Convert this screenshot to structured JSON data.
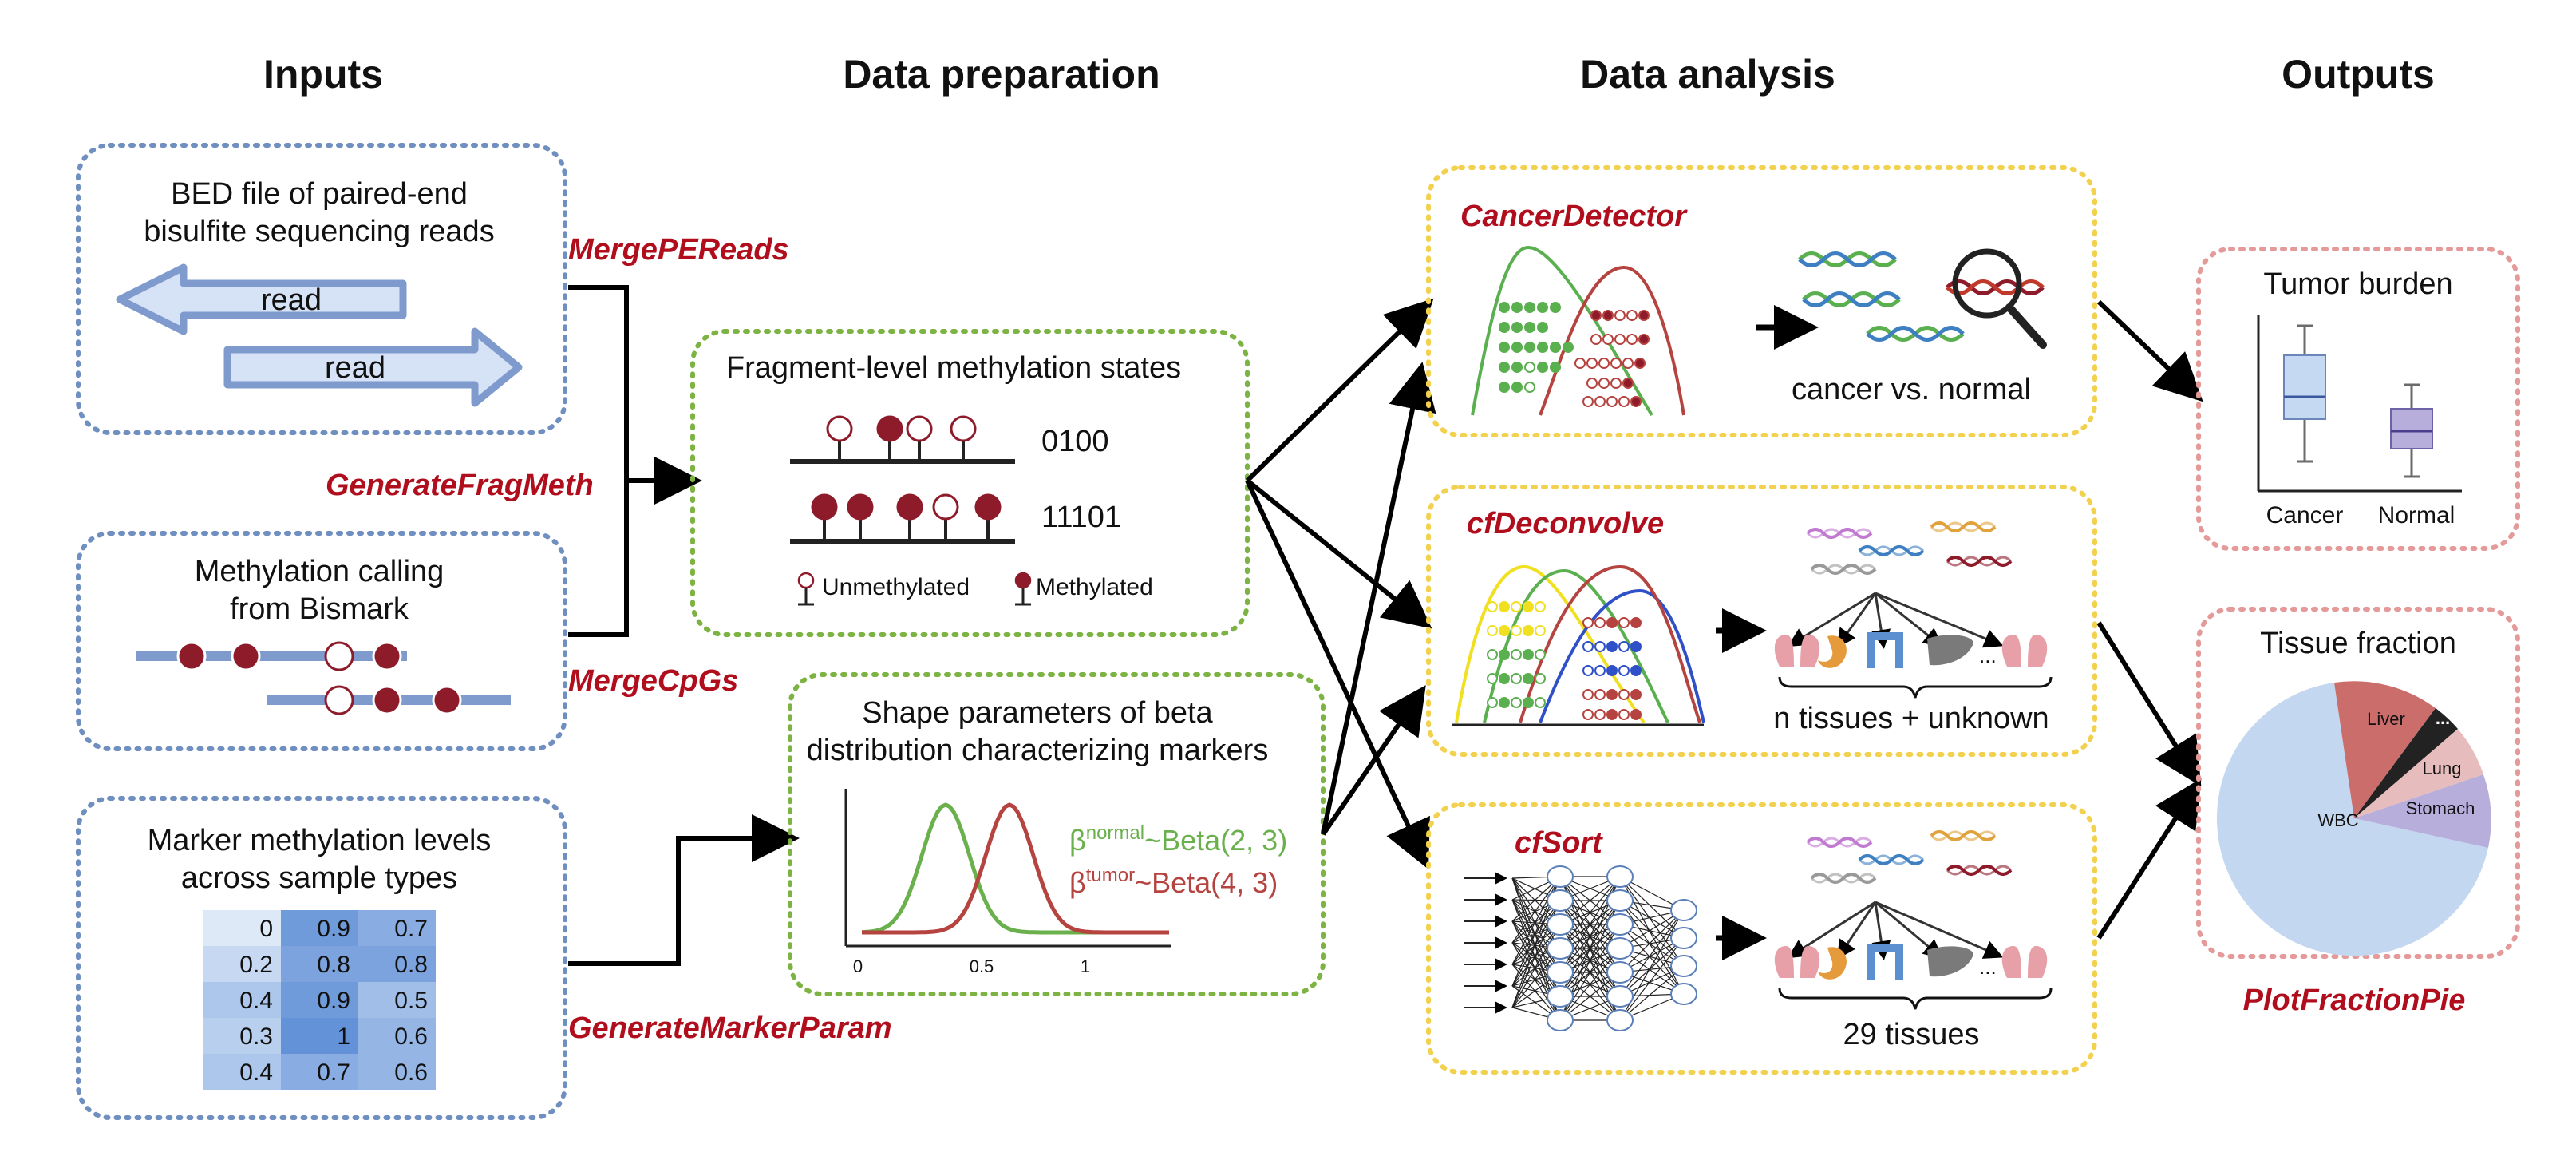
{
  "headers": {
    "inputs": "Inputs",
    "data_preparation": "Data preparation",
    "data_analysis": "Data analysis",
    "outputs": "Outputs"
  },
  "inputs": {
    "bed_file": {
      "line1": "BED file of paired-end",
      "line2": "bisulfite sequencing reads",
      "read_label": "read"
    },
    "bismark": {
      "line1": "Methylation calling",
      "line2": "from Bismark"
    },
    "markers": {
      "line1": "Marker methylation levels",
      "line2": "across sample types",
      "table": [
        [
          "0",
          "0.9",
          "0.7"
        ],
        [
          "0.2",
          "0.8",
          "0.8"
        ],
        [
          "0.4",
          "0.9",
          "0.5"
        ],
        [
          "0.3",
          "1",
          "0.6"
        ],
        [
          "0.4",
          "0.7",
          "0.6"
        ]
      ]
    }
  },
  "functions": {
    "merge_pe_reads": "MergePEReads",
    "generate_frag_meth": "GenerateFragMeth",
    "merge_cpgs": "MergeCpGs",
    "generate_marker_param": "GenerateMarkerParam",
    "cancer_detector": "CancerDetector",
    "cf_deconvolve": "cfDeconvolve",
    "cf_sort": "cfSort",
    "plot_fraction_pie": "PlotFractionPie"
  },
  "preparation": {
    "fragment": {
      "title": "Fragment-level methylation states",
      "code1": "0100",
      "code2": "11101",
      "legend_unmethylated": "Unmethylated",
      "legend_methylated": "Methylated"
    },
    "shape": {
      "line1": "Shape parameters of beta",
      "line2": "distribution characterizing markers",
      "normal_sup": "normal",
      "normal_dist": "~Beta(2, 3)",
      "tumor_sup": "tumor",
      "tumor_dist": "~Beta(4, 3)",
      "beta_symbol": "β",
      "ticks": [
        "0",
        "0.5",
        "1"
      ]
    }
  },
  "analysis": {
    "cancer_label": "cancer vs. normal",
    "deconvolve_label": "n tissues + unknown",
    "sort_label": "29 tissues",
    "ellipsis": "..."
  },
  "outputs": {
    "tumor_burden": {
      "title": "Tumor burden",
      "categories": [
        "Cancer",
        "Normal"
      ]
    },
    "tissue_fraction": {
      "title": "Tissue fraction",
      "labels": {
        "wbc": "WBC",
        "liver": "Liver",
        "lung": "Lung",
        "stomach": "Stomach",
        "other": "..."
      }
    }
  },
  "colors": {
    "function_red": "#b00e1d",
    "input_box": "#6f8fc0",
    "prep_box": "#7cb342",
    "analysis_box": "#f2d14f",
    "output_box": "#e59a9a",
    "read_arrow": "#7f9bcd",
    "methylated": "#8e1b2a",
    "normal_curve": "#6ab04c",
    "tumor_curve": "#b5433f"
  }
}
